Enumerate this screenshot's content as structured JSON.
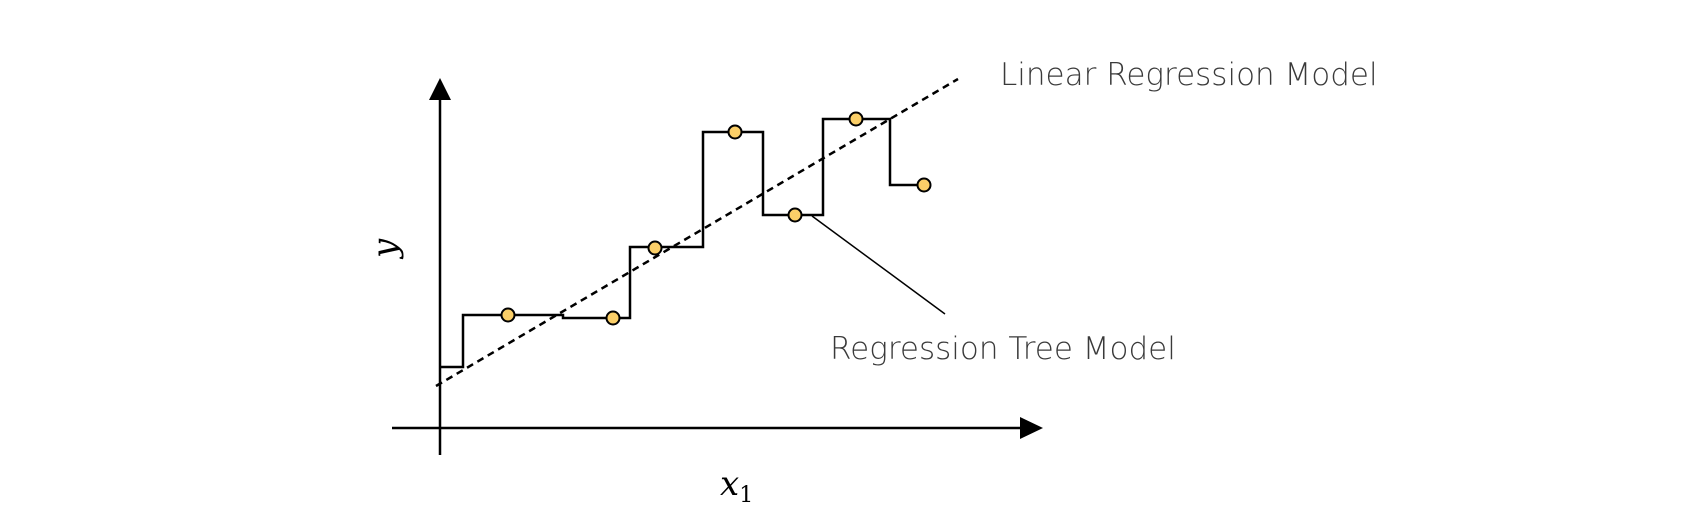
{
  "labels": {
    "linear": "Linear Regression Model",
    "tree": "Regression Tree Model"
  },
  "axes": {
    "x_label": "x",
    "x_subscript": "1",
    "y_label": "y"
  },
  "colors": {
    "point_fill": "#FBCF68",
    "stroke": "#000000"
  }
}
